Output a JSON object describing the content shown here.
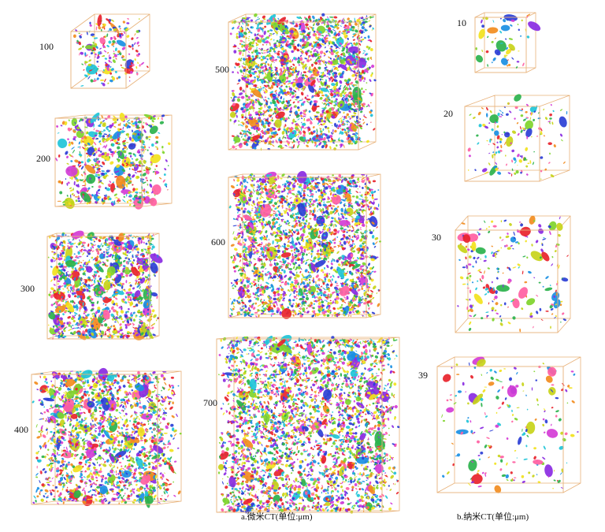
{
  "micro_ct": {
    "caption": "a.微米CT(单位:μm)",
    "volumes": [
      {
        "label": "100",
        "density": 100
      },
      {
        "label": "200",
        "density": 200
      },
      {
        "label": "300",
        "density": 300
      },
      {
        "label": "400",
        "density": 400
      },
      {
        "label": "500",
        "density": 500
      },
      {
        "label": "600",
        "density": 600
      },
      {
        "label": "700",
        "density": 700
      }
    ]
  },
  "nano_ct": {
    "caption": "b.纳米CT(单位:μm)",
    "volumes": [
      {
        "label": "10",
        "density": 10
      },
      {
        "label": "20",
        "density": 20
      },
      {
        "label": "30",
        "density": 30
      },
      {
        "label": "39",
        "density": 39
      }
    ]
  },
  "colors": {
    "box_edge": "#e8b27a",
    "palette": [
      "#e8232b",
      "#2b3fd6",
      "#2bb24c",
      "#f2e21d",
      "#20c4d8",
      "#d43cd6",
      "#f28c1e",
      "#7fd42b",
      "#8a2be2",
      "#ff5fa2",
      "#1a8fe3",
      "#c8d419"
    ]
  }
}
